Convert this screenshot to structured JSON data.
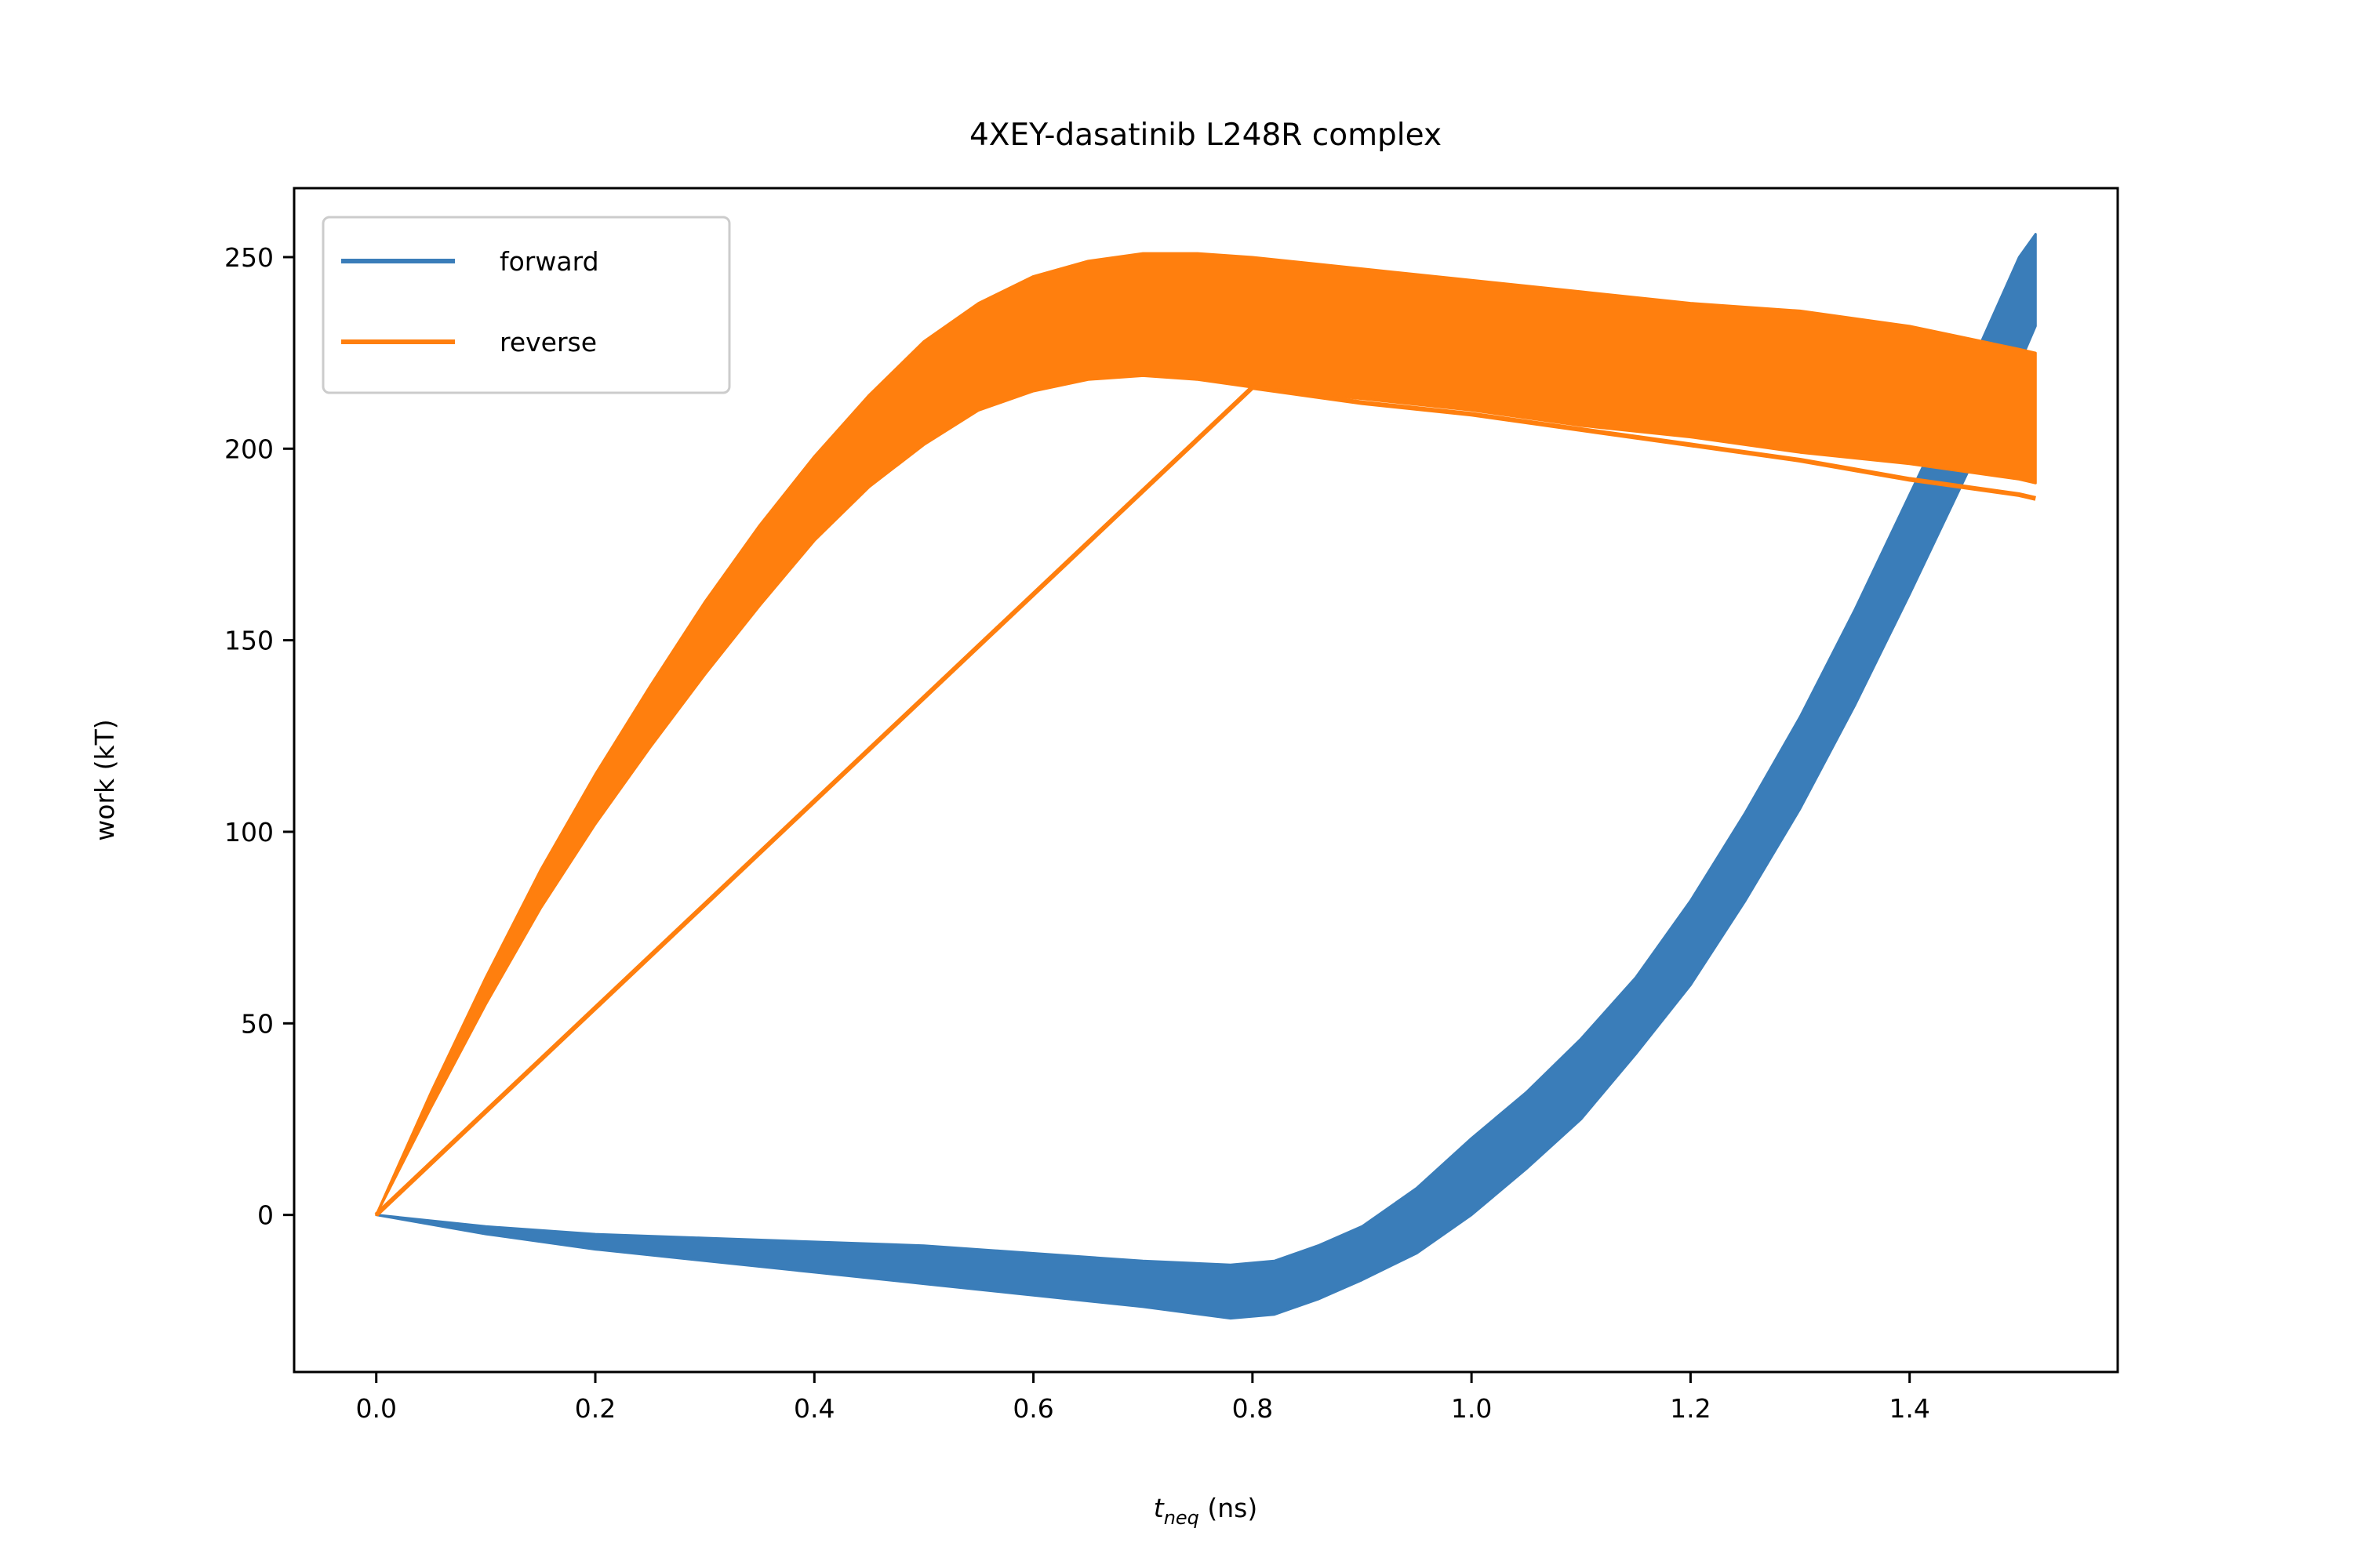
{
  "chart_data": {
    "type": "area",
    "title": "4XEY-dasatinib L248R complex",
    "xlabel": {
      "main": "t",
      "sub": "neq",
      "unit": " (ns)"
    },
    "ylabel": "work (kT)",
    "xlim": [
      -0.075,
      1.59
    ],
    "ylim": [
      -41,
      268
    ],
    "xticks": [
      "0.0",
      "0.2",
      "0.4",
      "0.6",
      "0.8",
      "1.0",
      "1.2",
      "1.4"
    ],
    "xtick_values": [
      0.0,
      0.2,
      0.4,
      0.6,
      0.8,
      1.0,
      1.2,
      1.4
    ],
    "yticks": [
      "0",
      "50",
      "100",
      "150",
      "200",
      "250"
    ],
    "ytick_values": [
      0,
      50,
      100,
      150,
      200,
      250
    ],
    "legend": {
      "position": "upper-left",
      "entries": [
        "forward",
        "reverse"
      ]
    },
    "grid": false,
    "series": [
      {
        "name": "forward",
        "color": "#3a7db9",
        "upper": [
          [
            0.0,
            0
          ],
          [
            0.1,
            -3
          ],
          [
            0.2,
            -5
          ],
          [
            0.3,
            -6
          ],
          [
            0.4,
            -7
          ],
          [
            0.5,
            -8
          ],
          [
            0.6,
            -10
          ],
          [
            0.7,
            -12
          ],
          [
            0.78,
            -13
          ],
          [
            0.82,
            -12
          ],
          [
            0.86,
            -8
          ],
          [
            0.9,
            -3
          ],
          [
            0.95,
            7
          ],
          [
            1.0,
            20
          ],
          [
            1.05,
            32
          ],
          [
            1.1,
            46
          ],
          [
            1.15,
            62
          ],
          [
            1.2,
            82
          ],
          [
            1.25,
            105
          ],
          [
            1.3,
            130
          ],
          [
            1.35,
            158
          ],
          [
            1.4,
            188
          ],
          [
            1.45,
            218
          ],
          [
            1.5,
            250
          ],
          [
            1.515,
            256
          ]
        ],
        "lower": [
          [
            0.0,
            0
          ],
          [
            0.1,
            -5
          ],
          [
            0.2,
            -9
          ],
          [
            0.3,
            -12
          ],
          [
            0.4,
            -15
          ],
          [
            0.5,
            -18
          ],
          [
            0.6,
            -21
          ],
          [
            0.7,
            -24
          ],
          [
            0.78,
            -27
          ],
          [
            0.82,
            -26
          ],
          [
            0.86,
            -22
          ],
          [
            0.9,
            -17
          ],
          [
            0.95,
            -10
          ],
          [
            1.0,
            0
          ],
          [
            1.05,
            12
          ],
          [
            1.1,
            25
          ],
          [
            1.15,
            42
          ],
          [
            1.2,
            60
          ],
          [
            1.25,
            82
          ],
          [
            1.3,
            106
          ],
          [
            1.35,
            133
          ],
          [
            1.4,
            162
          ],
          [
            1.45,
            192
          ],
          [
            1.5,
            222
          ],
          [
            1.515,
            232
          ]
        ]
      },
      {
        "name": "reverse",
        "color": "#ff7f0e",
        "upper": [
          [
            0.0,
            0
          ],
          [
            0.05,
            32
          ],
          [
            0.1,
            62
          ],
          [
            0.15,
            90
          ],
          [
            0.2,
            115
          ],
          [
            0.25,
            138
          ],
          [
            0.3,
            160
          ],
          [
            0.35,
            180
          ],
          [
            0.4,
            198
          ],
          [
            0.45,
            214
          ],
          [
            0.5,
            228
          ],
          [
            0.55,
            238
          ],
          [
            0.6,
            245
          ],
          [
            0.65,
            249
          ],
          [
            0.7,
            251
          ],
          [
            0.75,
            251
          ],
          [
            0.8,
            250
          ],
          [
            0.9,
            247
          ],
          [
            1.0,
            244
          ],
          [
            1.1,
            241
          ],
          [
            1.2,
            238
          ],
          [
            1.3,
            236
          ],
          [
            1.4,
            232
          ],
          [
            1.5,
            226
          ],
          [
            1.515,
            225
          ]
        ],
        "lower": [
          [
            0.0,
            0
          ],
          [
            0.05,
            28
          ],
          [
            0.1,
            55
          ],
          [
            0.15,
            80
          ],
          [
            0.2,
            102
          ],
          [
            0.25,
            122
          ],
          [
            0.3,
            141
          ],
          [
            0.35,
            159
          ],
          [
            0.4,
            176
          ],
          [
            0.45,
            190
          ],
          [
            0.5,
            201
          ],
          [
            0.55,
            210
          ],
          [
            0.6,
            215
          ],
          [
            0.65,
            218
          ],
          [
            0.7,
            219
          ],
          [
            0.75,
            218
          ],
          [
            0.8,
            216
          ],
          [
            0.9,
            213
          ],
          [
            1.0,
            210
          ],
          [
            1.1,
            206
          ],
          [
            1.2,
            203
          ],
          [
            1.3,
            199
          ],
          [
            1.4,
            196
          ],
          [
            1.5,
            192
          ],
          [
            1.515,
            191
          ]
        ],
        "outlier": [
          [
            0.0,
            0
          ],
          [
            0.8,
            216
          ],
          [
            0.9,
            212
          ],
          [
            1.0,
            209
          ],
          [
            1.1,
            205
          ],
          [
            1.2,
            201
          ],
          [
            1.3,
            197
          ],
          [
            1.4,
            192
          ],
          [
            1.5,
            188
          ],
          [
            1.515,
            187
          ]
        ]
      }
    ]
  }
}
